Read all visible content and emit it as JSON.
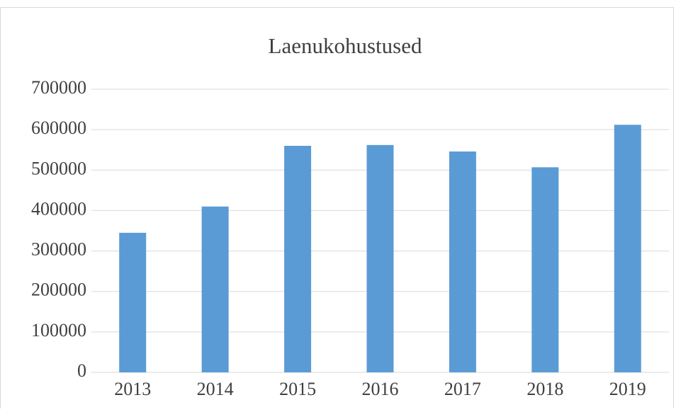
{
  "chart_data": {
    "type": "bar",
    "title": "Laenukohustused",
    "categories": [
      "2013",
      "2014",
      "2015",
      "2016",
      "2017",
      "2018",
      "2019"
    ],
    "values": [
      345000,
      410000,
      560000,
      562000,
      546000,
      507000,
      612000
    ],
    "color": "#5b9bd5",
    "ylim": [
      0,
      700000
    ],
    "yticks": [
      0,
      100000,
      200000,
      300000,
      400000,
      500000,
      600000,
      700000
    ],
    "grid": true
  }
}
